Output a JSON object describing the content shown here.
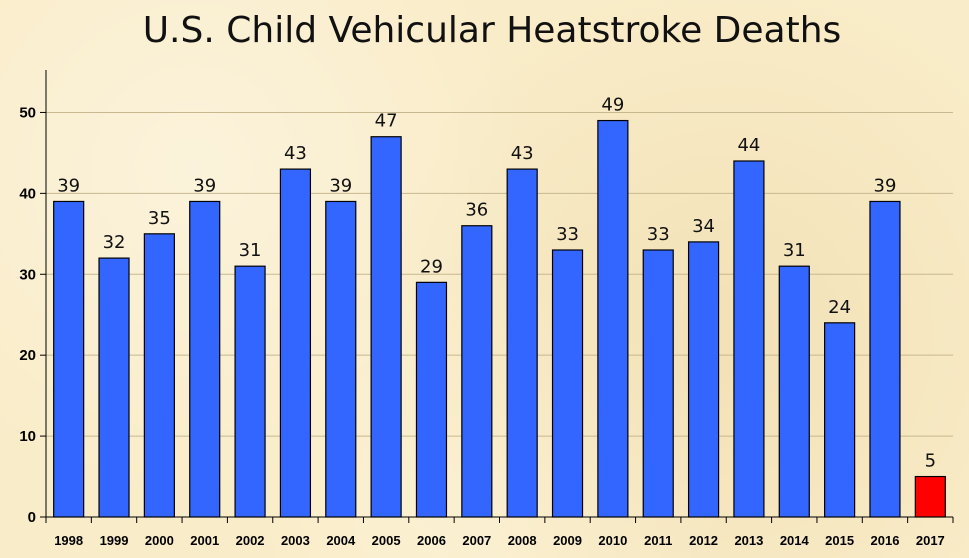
{
  "chart_data": {
    "type": "bar",
    "title": "U.S. Child Vehicular Heatstroke Deaths",
    "categories": [
      "1998",
      "1999",
      "2000",
      "2001",
      "2002",
      "2003",
      "2004",
      "2005",
      "2006",
      "2007",
      "2008",
      "2009",
      "2010",
      "2011",
      "2012",
      "2013",
      "2014",
      "2015",
      "2016",
      "2017"
    ],
    "values": [
      39,
      32,
      35,
      39,
      31,
      43,
      39,
      47,
      29,
      36,
      43,
      33,
      49,
      33,
      34,
      44,
      31,
      24,
      39,
      5
    ],
    "ylim": [
      0,
      55
    ],
    "yticks": [
      0,
      10,
      20,
      30,
      40,
      50
    ],
    "grid": true,
    "data_labels": true,
    "colors": {
      "bar": "#3366ff",
      "highlight": "#ff0000",
      "highlight_category": "2017",
      "grid": "#c8b890",
      "background": "#f9ecc8"
    }
  }
}
